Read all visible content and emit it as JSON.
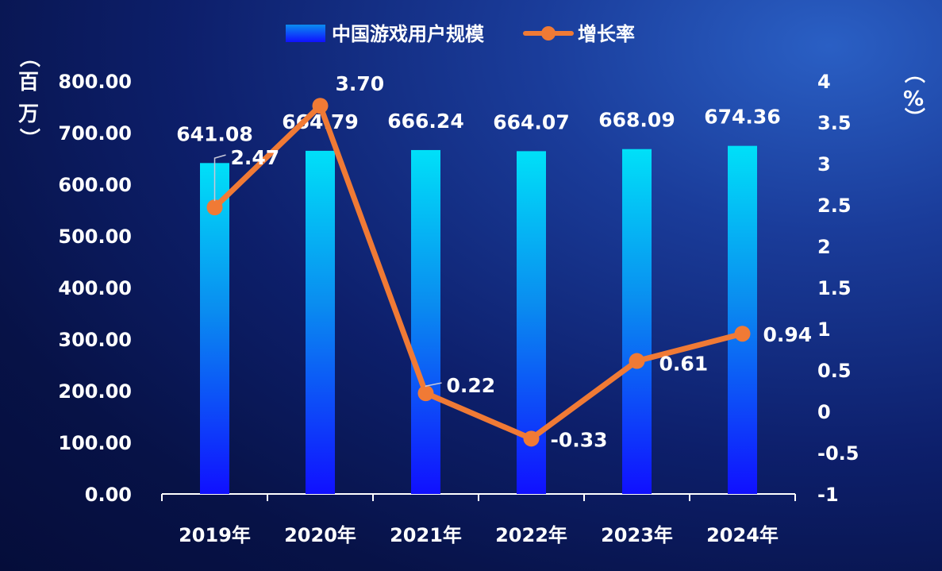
{
  "chart_data": {
    "type": "bar",
    "categories": [
      "2019年",
      "2020年",
      "2021年",
      "2022年",
      "2023年",
      "2024年"
    ],
    "series": [
      {
        "name": "中国游戏用户规模",
        "type": "bar",
        "axis": "left",
        "values": [
          641.08,
          664.79,
          666.24,
          664.07,
          668.09,
          674.36
        ],
        "labels": [
          "641.08",
          "664.79",
          "666.24",
          "664.07",
          "668.09",
          "674.36"
        ]
      },
      {
        "name": "增长率",
        "type": "line",
        "axis": "right",
        "values": [
          2.47,
          3.7,
          0.22,
          -0.33,
          0.61,
          0.94
        ],
        "labels": [
          "2.47",
          "3.70",
          "0.22",
          "-0.33",
          "0.61",
          "0.94"
        ]
      }
    ],
    "left_axis": {
      "label": "（百万）",
      "ylim": [
        0,
        800
      ],
      "ticks": [
        0,
        100,
        200,
        300,
        400,
        500,
        600,
        700,
        800
      ],
      "tick_labels": [
        "0.00",
        "100.00",
        "200.00",
        "300.00",
        "400.00",
        "500.00",
        "600.00",
        "700.00",
        "800.00"
      ]
    },
    "right_axis": {
      "label": "（%）",
      "ylim": [
        -1,
        4
      ],
      "ticks": [
        -1,
        -0.5,
        0,
        0.5,
        1,
        1.5,
        2,
        2.5,
        3,
        3.5,
        4
      ],
      "tick_labels": [
        "-1",
        "-0.5",
        "0",
        "0.5",
        "1",
        "1.5",
        "2",
        "2.5",
        "3",
        "3.5",
        "4"
      ]
    },
    "legend": {
      "position": "top-center"
    },
    "grid": false,
    "colors": {
      "bar_top": "#00e0f8",
      "bar_mid": "#0a8cf0",
      "bar_bottom": "#1010ff",
      "line": "#f07a35",
      "axis": "#ffffff"
    }
  }
}
